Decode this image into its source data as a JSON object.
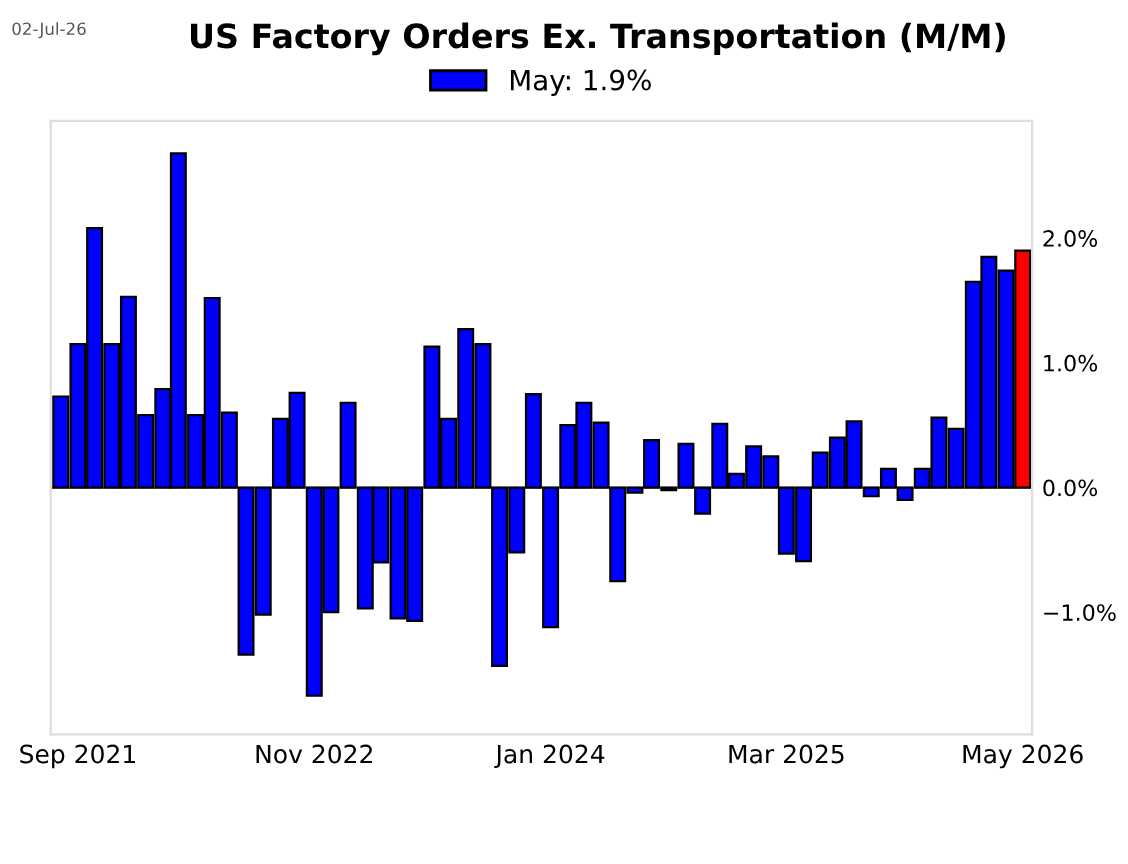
{
  "chart_data": {
    "type": "bar",
    "title": "US Factory Orders Ex. Transportation (M/M)",
    "annotations": [
      "02-Jul-26"
    ],
    "x": [
      "2021-08",
      "2021-09",
      "2021-10",
      "2021-11",
      "2021-12",
      "2022-01",
      "2022-02",
      "2022-03",
      "2022-04",
      "2022-05",
      "2022-06",
      "2022-07",
      "2022-08",
      "2022-09",
      "2022-10",
      "2022-11",
      "2022-12",
      "2023-01",
      "2023-02",
      "2023-03",
      "2023-04",
      "2023-05",
      "2023-06",
      "2023-07",
      "2023-08",
      "2023-09",
      "2023-10",
      "2023-11",
      "2023-12",
      "2024-01",
      "2024-02",
      "2024-03",
      "2024-04",
      "2024-05",
      "2024-06",
      "2024-07",
      "2024-08",
      "2024-09",
      "2024-10",
      "2024-11",
      "2024-12",
      "2025-01",
      "2025-02",
      "2025-03",
      "2025-04",
      "2025-05",
      "2025-06",
      "2025-07",
      "2025-08",
      "2025-09",
      "2025-10",
      "2025-11",
      "2025-12",
      "2026-01",
      "2026-02",
      "2026-03",
      "2026-04",
      "2026-05"
    ],
    "series": [
      {
        "name": "May: 1.9%",
        "color": "#0000ff",
        "colors": [
          "#0000ff",
          "#0000ff",
          "#0000ff",
          "#0000ff",
          "#0000ff",
          "#0000ff",
          "#0000ff",
          "#0000ff",
          "#0000ff",
          "#0000ff",
          "#0000ff",
          "#0000ff",
          "#0000ff",
          "#0000ff",
          "#0000ff",
          "#0000ff",
          "#0000ff",
          "#0000ff",
          "#0000ff",
          "#0000ff",
          "#0000ff",
          "#0000ff",
          "#0000ff",
          "#0000ff",
          "#0000ff",
          "#0000ff",
          "#0000ff",
          "#0000ff",
          "#0000ff",
          "#0000ff",
          "#0000ff",
          "#0000ff",
          "#0000ff",
          "#0000ff",
          "#0000ff",
          "#0000ff",
          "#0000ff",
          "#0000ff",
          "#0000ff",
          "#0000ff",
          "#0000ff",
          "#0000ff",
          "#0000ff",
          "#0000ff",
          "#0000ff",
          "#0000ff",
          "#0000ff",
          "#0000ff",
          "#0000ff",
          "#0000ff",
          "#0000ff",
          "#0000ff",
          "#0000ff",
          "#0000ff",
          "#0000ff",
          "#0000ff",
          "#0000ff",
          "#ff0000"
        ],
        "values": [
          0.73,
          1.15,
          2.08,
          1.15,
          1.53,
          0.58,
          0.79,
          2.68,
          0.58,
          1.52,
          0.6,
          -1.34,
          -1.02,
          0.55,
          0.76,
          -1.67,
          -1.0,
          0.68,
          -0.97,
          -0.6,
          -1.05,
          -1.07,
          1.13,
          0.55,
          1.27,
          1.15,
          -1.43,
          -0.52,
          0.75,
          -1.12,
          0.5,
          0.68,
          0.52,
          -0.75,
          -0.04,
          0.38,
          -0.02,
          0.35,
          -0.21,
          0.51,
          0.11,
          0.33,
          0.25,
          -0.53,
          -0.59,
          0.28,
          0.4,
          0.53,
          -0.07,
          0.15,
          -0.1,
          0.15,
          0.56,
          0.47,
          1.65,
          1.85,
          1.74,
          1.9
        ]
      }
    ],
    "xlim": [
      "2021-07-14",
      "2026-05-18"
    ],
    "xticks": [
      {
        "value": "2021-09",
        "label": "Sep 2021"
      },
      {
        "value": "2022-11",
        "label": "Nov 2022"
      },
      {
        "value": "2024-01",
        "label": "Jan 2024"
      },
      {
        "value": "2025-03",
        "label": "Mar 2025"
      },
      {
        "value": "2026-05",
        "label": "May 2026"
      }
    ],
    "ylim": [
      -1.98,
      2.94
    ],
    "yticks": [
      {
        "value": -1.0,
        "label": "−1.0%"
      },
      {
        "value": 0.0,
        "label": "0.0%"
      },
      {
        "value": 1.0,
        "label": "1.0%"
      },
      {
        "value": 2.0,
        "label": "2.0%"
      }
    ],
    "ref_lines": [
      {
        "axis": "y",
        "value": 0,
        "color": "#aaaaaa"
      }
    ],
    "legend": "top",
    "grid": false
  }
}
